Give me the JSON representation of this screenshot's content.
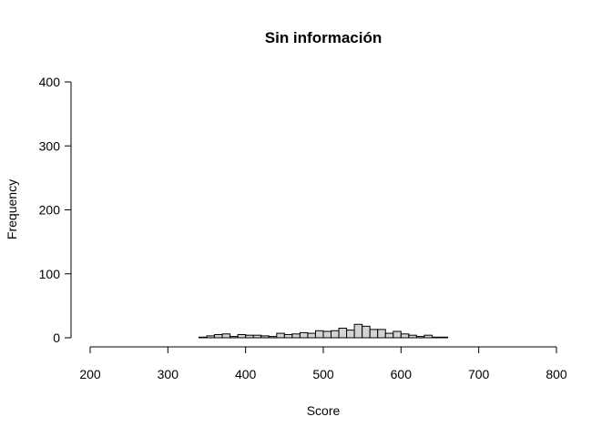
{
  "chart_data": {
    "type": "bar",
    "title": "Sin información",
    "xlabel": "Score",
    "ylabel": "Frequency",
    "xlim": [
      200,
      800
    ],
    "ylim": [
      0,
      400
    ],
    "x_ticks": [
      "200",
      "300",
      "400",
      "500",
      "600",
      "700",
      "800"
    ],
    "y_ticks": [
      "0",
      "100",
      "200",
      "300",
      "400"
    ],
    "bin_width": 10,
    "bins": [
      {
        "start": 340,
        "count": 1
      },
      {
        "start": 350,
        "count": 3
      },
      {
        "start": 360,
        "count": 5
      },
      {
        "start": 370,
        "count": 6
      },
      {
        "start": 380,
        "count": 2
      },
      {
        "start": 390,
        "count": 5
      },
      {
        "start": 400,
        "count": 4
      },
      {
        "start": 410,
        "count": 4
      },
      {
        "start": 420,
        "count": 3
      },
      {
        "start": 430,
        "count": 2
      },
      {
        "start": 440,
        "count": 7
      },
      {
        "start": 450,
        "count": 5
      },
      {
        "start": 460,
        "count": 6
      },
      {
        "start": 470,
        "count": 8
      },
      {
        "start": 480,
        "count": 7
      },
      {
        "start": 490,
        "count": 11
      },
      {
        "start": 500,
        "count": 10
      },
      {
        "start": 510,
        "count": 11
      },
      {
        "start": 520,
        "count": 15
      },
      {
        "start": 530,
        "count": 12
      },
      {
        "start": 540,
        "count": 21
      },
      {
        "start": 550,
        "count": 18
      },
      {
        "start": 560,
        "count": 13
      },
      {
        "start": 570,
        "count": 13
      },
      {
        "start": 580,
        "count": 7
      },
      {
        "start": 590,
        "count": 10
      },
      {
        "start": 600,
        "count": 6
      },
      {
        "start": 610,
        "count": 4
      },
      {
        "start": 620,
        "count": 2
      },
      {
        "start": 630,
        "count": 4
      },
      {
        "start": 640,
        "count": 1
      },
      {
        "start": 650,
        "count": 1
      }
    ],
    "bar_fill": "#d3d3d3",
    "bar_stroke": "#000000",
    "grid": false,
    "legend": "none"
  }
}
